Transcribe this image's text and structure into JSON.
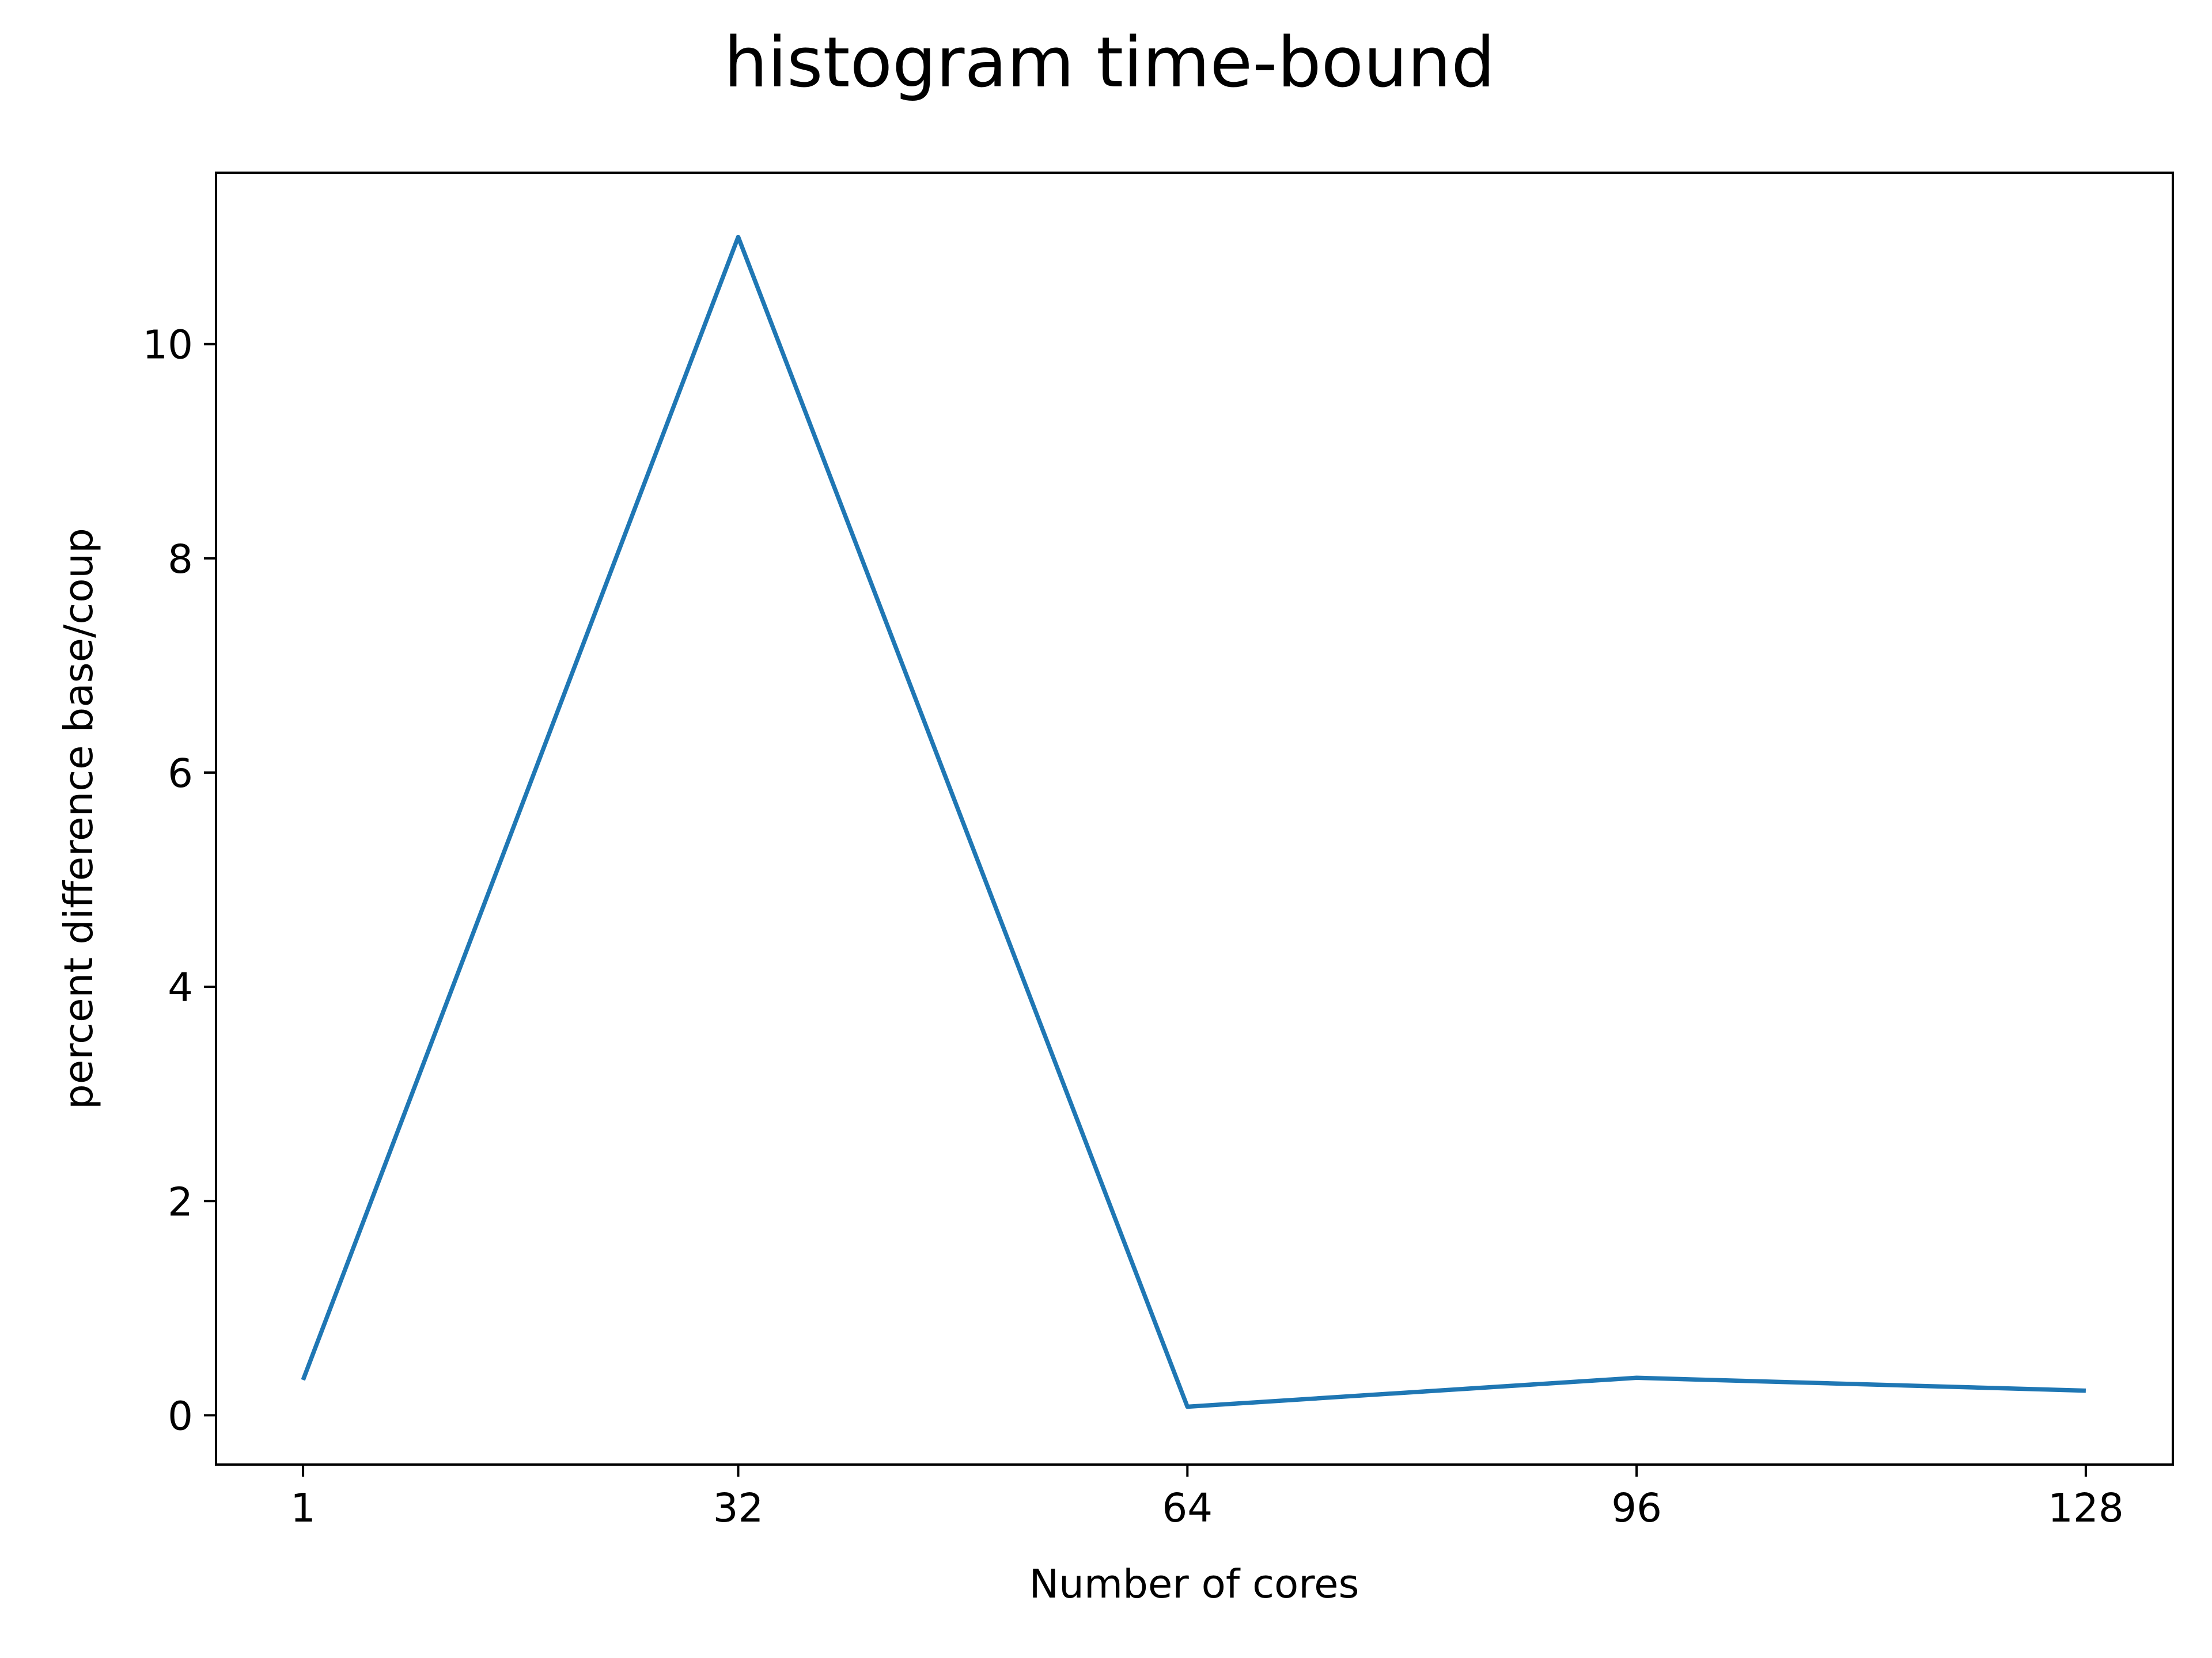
{
  "chart_data": {
    "type": "line",
    "title": "histogram time-bound",
    "xlabel": "Number of cores",
    "ylabel": "percent difference base/coup",
    "x_ticks": [
      "1",
      "32",
      "64",
      "96",
      "128"
    ],
    "y_ticks": [
      "0",
      "2",
      "4",
      "6",
      "8",
      "10"
    ],
    "xlim": [
      -5.2,
      134.2
    ],
    "ylim": [
      -0.46,
      11.6
    ],
    "grid": false,
    "series": [
      {
        "color": "#1f77b4",
        "x": [
          1,
          32,
          64,
          96,
          128
        ],
        "y": [
          0.33,
          11.0,
          0.08,
          0.35,
          0.23
        ]
      }
    ]
  }
}
